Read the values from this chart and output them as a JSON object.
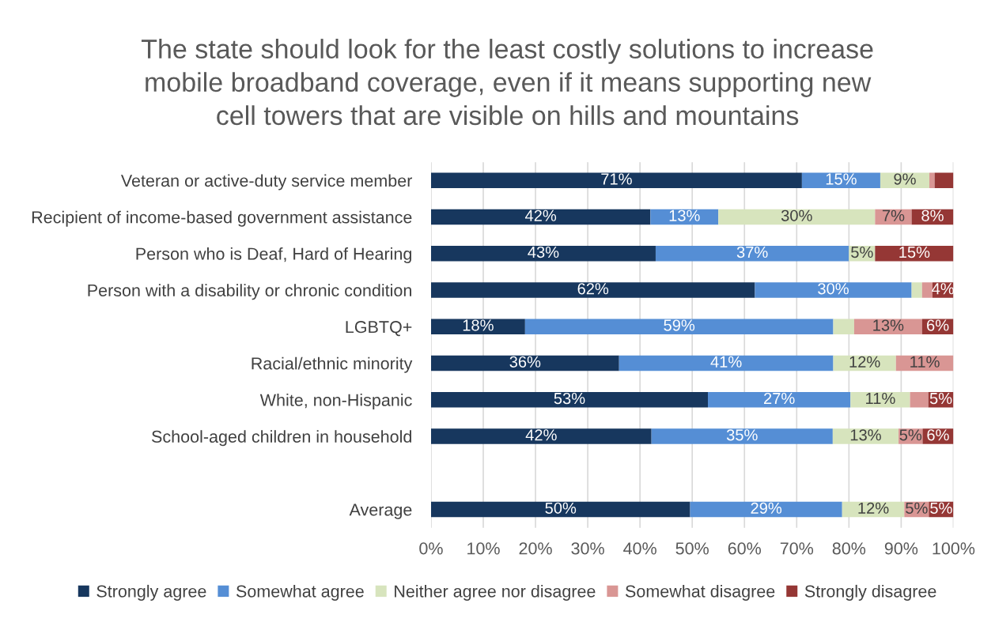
{
  "chart_data": {
    "type": "bar",
    "orientation": "horizontal",
    "stacked": true,
    "title": "The state should look for the least costly solutions to increase\nmobile broadband coverage, even if it means supporting new\ncell towers that are visible on hills and mountains",
    "categories": [
      "Veteran or active-duty service member",
      "Recipient of income-based government assistance",
      "Person who is Deaf, Hard of Hearing",
      "Person with a disability or chronic condition",
      "LGBTQ+",
      "Racial/ethnic minority",
      "White, non-Hispanic",
      "School-aged children in household",
      null,
      "Average"
    ],
    "series": [
      {
        "name": "Strongly agree",
        "color": "#17375e",
        "values": [
          71,
          42,
          43,
          62,
          18,
          36,
          53,
          42.2,
          null,
          49.6
        ],
        "value_labels": [
          "71%",
          "42%",
          "43%",
          "62%",
          "18%",
          "36%",
          "53%",
          "42%",
          null,
          "50%"
        ]
      },
      {
        "name": "Somewhat agree",
        "color": "#558ed5",
        "values": [
          15,
          13,
          37,
          30,
          59,
          41,
          27.3,
          34.7,
          null,
          29.1
        ],
        "value_labels": [
          "15%",
          "13%",
          "37%",
          "30%",
          "59%",
          "41%",
          "27%",
          "35%",
          null,
          "29%"
        ]
      },
      {
        "name": "Neither agree nor disagree",
        "color": "#d7e4bd",
        "values": [
          9.4,
          30,
          5,
          2,
          4,
          12,
          11.4,
          12.6,
          null,
          11.9
        ],
        "value_labels": [
          "9%",
          "30%",
          "5%",
          null,
          null,
          "12%",
          "11%",
          "13%",
          null,
          "12%"
        ]
      },
      {
        "name": "Somewhat disagree",
        "color": "#d99694",
        "values": [
          1,
          7,
          null,
          2,
          13,
          11,
          3.5,
          4.6,
          null,
          4.7
        ],
        "value_labels": [
          null,
          "7%",
          null,
          null,
          "13%",
          "11%",
          null,
          "5%",
          null,
          "5%"
        ]
      },
      {
        "name": "Strongly disagree",
        "color": "#953735",
        "values": [
          3.6,
          8,
          15,
          4,
          6,
          null,
          4.8,
          5.9,
          null,
          4.7
        ],
        "value_labels": [
          null,
          "8%",
          "15%",
          "4%",
          "6%",
          null,
          "5%",
          "6%",
          null,
          "5%"
        ]
      }
    ],
    "xlim": [
      0,
      100
    ],
    "xticks": [
      {
        "value": 0,
        "label": "0%"
      },
      {
        "value": 10,
        "label": "10%"
      },
      {
        "value": 20,
        "label": "20%"
      },
      {
        "value": 30,
        "label": "30%"
      },
      {
        "value": 40,
        "label": "40%"
      },
      {
        "value": 50,
        "label": "50%"
      },
      {
        "value": 60,
        "label": "60%"
      },
      {
        "value": 70,
        "label": "70%"
      },
      {
        "value": 80,
        "label": "80%"
      },
      {
        "value": 90,
        "label": "90%"
      },
      {
        "value": 100,
        "label": "100%"
      }
    ],
    "grid": "x",
    "legend": "bottom"
  }
}
